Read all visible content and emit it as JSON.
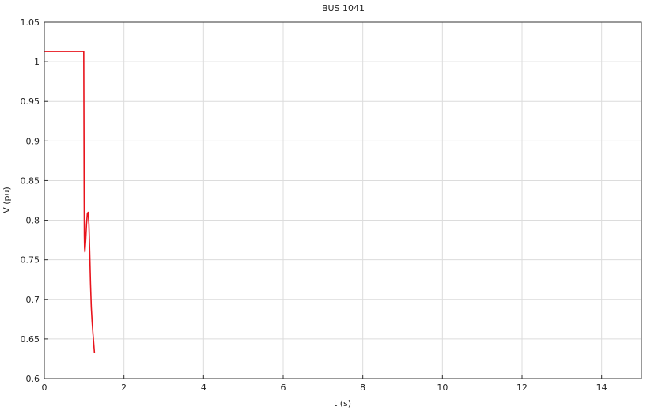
{
  "chart_data": {
    "type": "line",
    "title": "BUS 1041",
    "xlabel": "t (s)",
    "ylabel": "V (pu)",
    "xlim": [
      0,
      15
    ],
    "ylim": [
      0.6,
      1.05
    ],
    "xticks": [
      0,
      2,
      4,
      6,
      8,
      10,
      12,
      14
    ],
    "yticks": [
      0.6,
      0.65,
      0.7,
      0.75,
      0.8,
      0.85,
      0.9,
      0.95,
      1,
      1.05
    ],
    "xtick_labels": [
      "0",
      "2",
      "4",
      "6",
      "8",
      "10",
      "12",
      "14"
    ],
    "ytick_labels": [
      "0.6",
      "0.65",
      "0.7",
      "0.75",
      "0.8",
      "0.85",
      "0.9",
      "0.95",
      "1",
      "1.05"
    ],
    "grid": true,
    "series": [
      {
        "color": "#e8141c",
        "x": [
          0,
          0.99,
          1.0,
          1.005,
          1.01,
          1.02,
          1.04,
          1.06,
          1.08,
          1.1,
          1.12,
          1.14,
          1.16,
          1.18,
          1.2,
          1.22,
          1.24,
          1.26
        ],
        "y": [
          1.013,
          1.013,
          0.84,
          0.78,
          0.765,
          0.76,
          0.775,
          0.795,
          0.808,
          0.81,
          0.795,
          0.76,
          0.72,
          0.69,
          0.672,
          0.658,
          0.645,
          0.632
        ]
      }
    ]
  }
}
